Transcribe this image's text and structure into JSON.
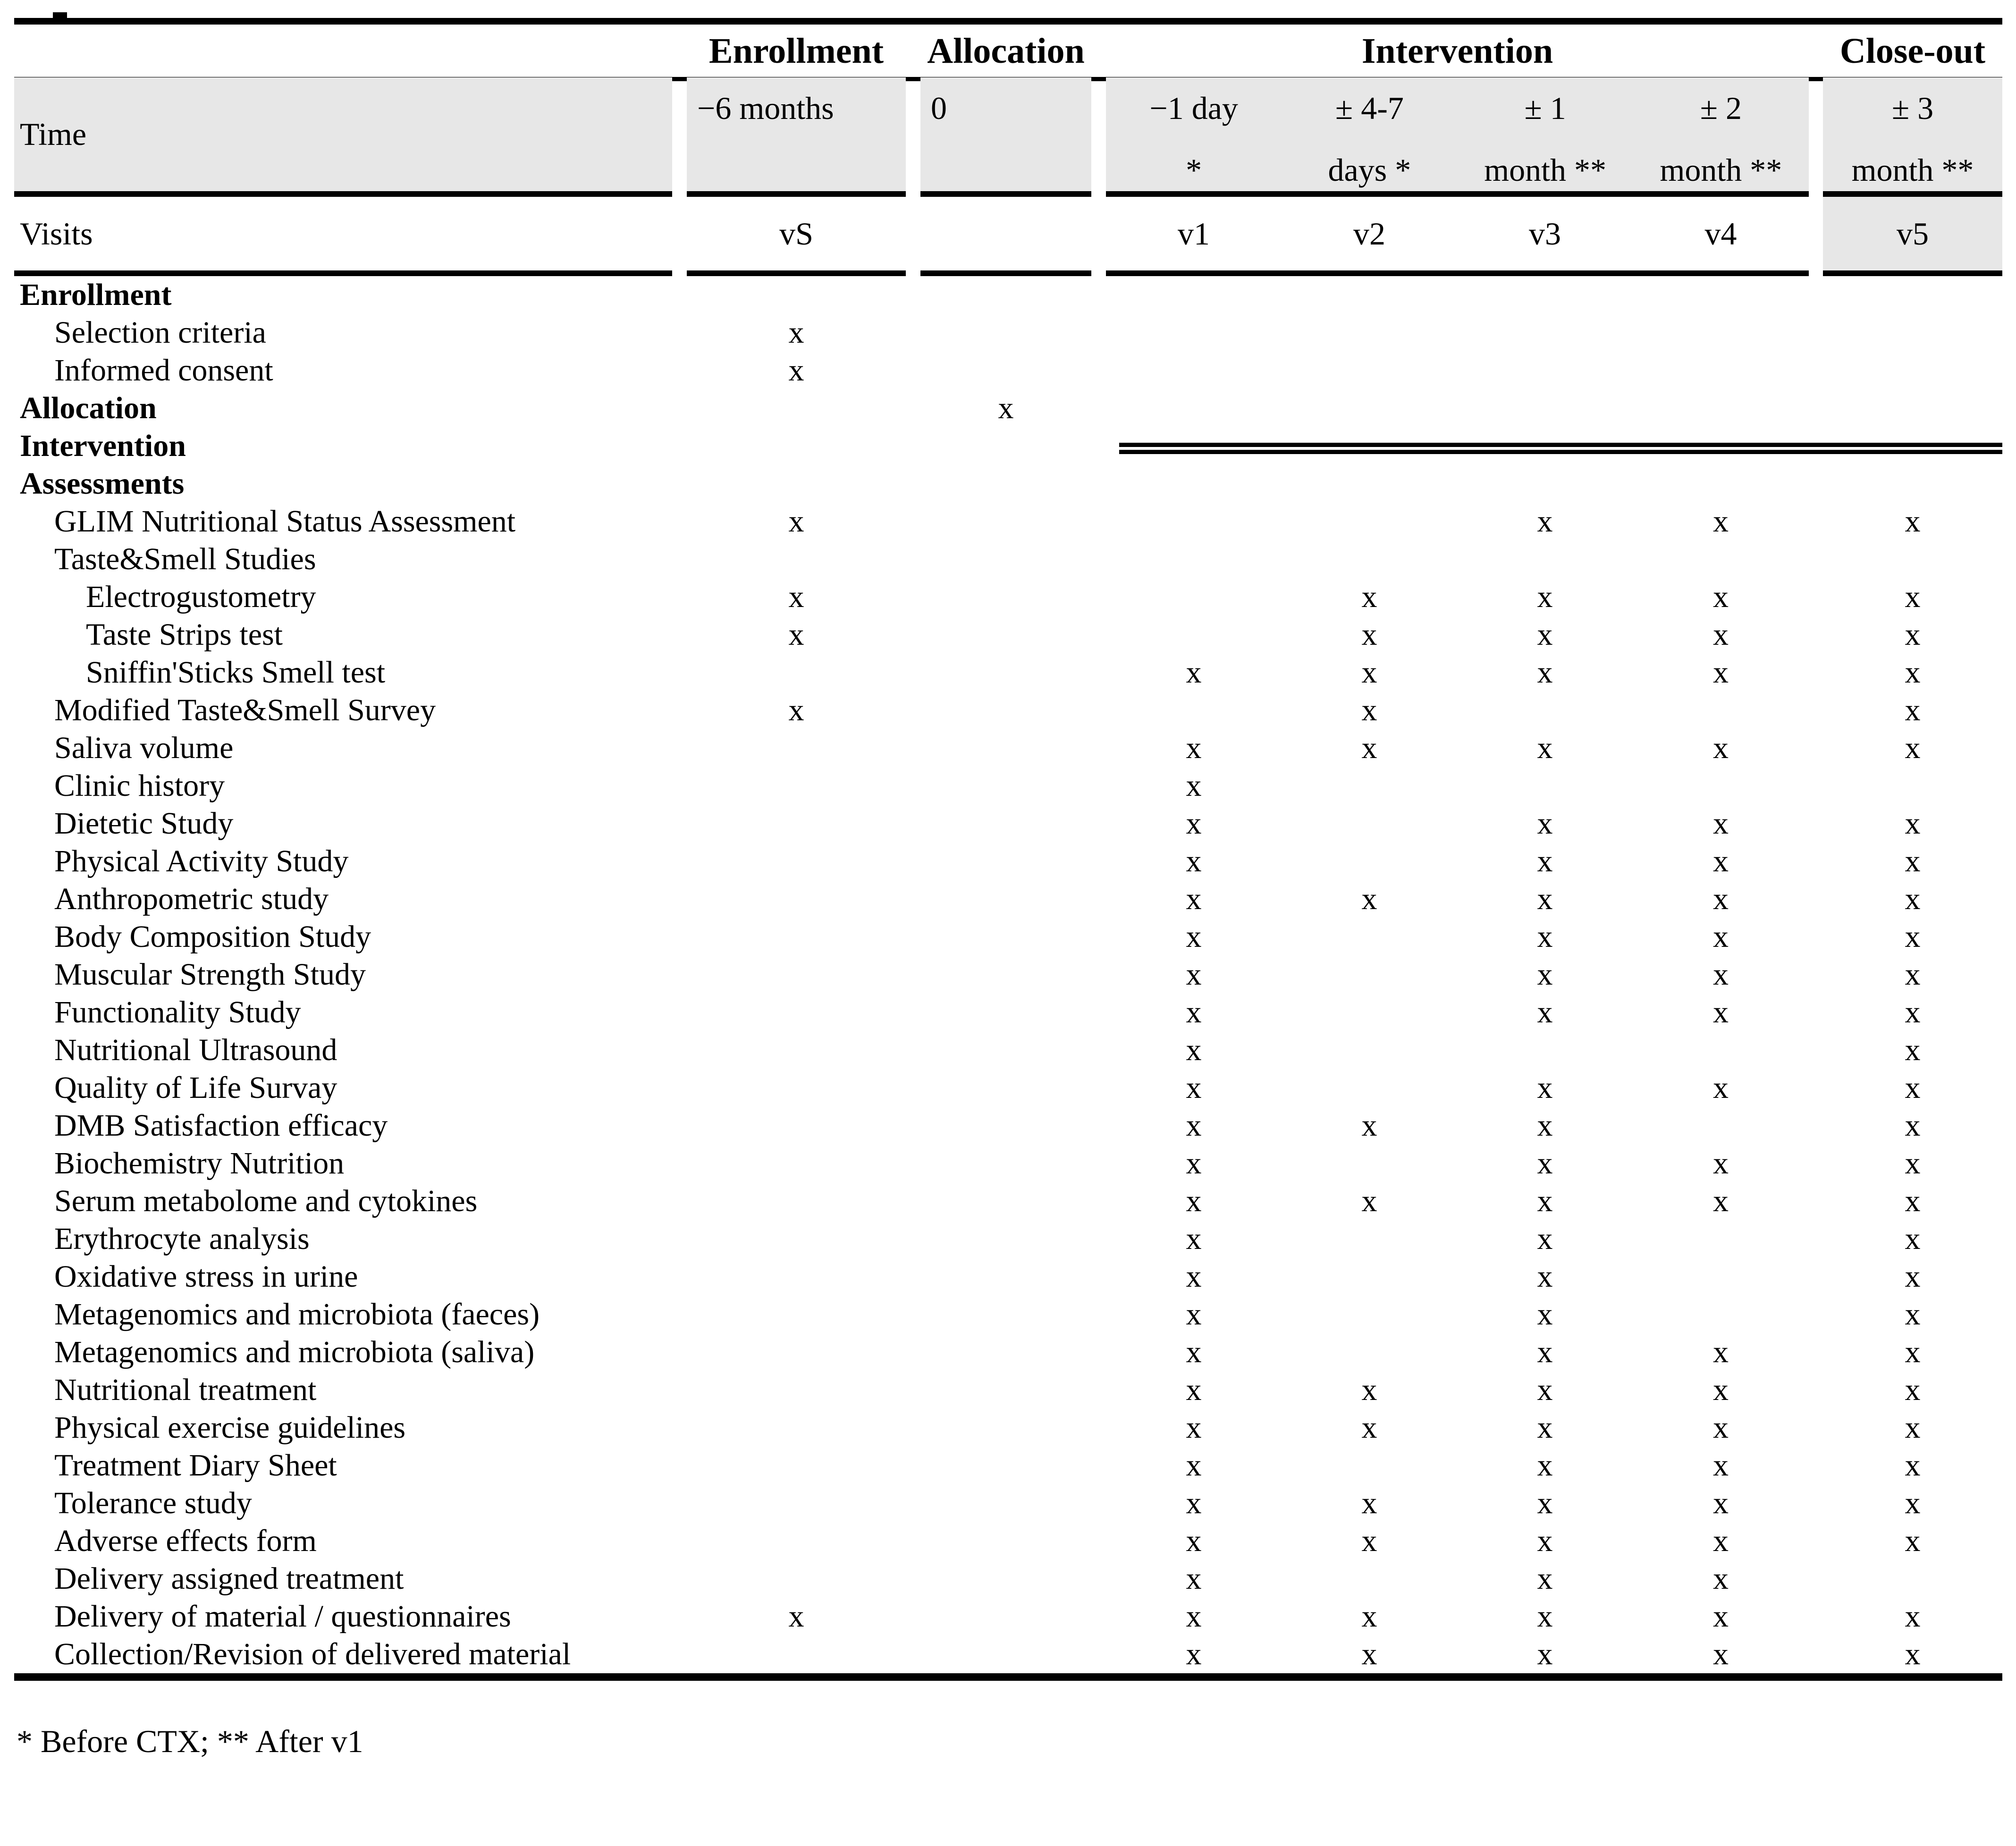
{
  "colors": {
    "shade_fill": "#e7e7e7",
    "rule_color": "#000000",
    "text_color": "#000000"
  },
  "table": {
    "mark_char": "x",
    "group_headers": {
      "enrollment": "Enrollment",
      "allocation": "Allocation",
      "intervention": "Intervention",
      "closeout": "Close-out"
    },
    "time_row": {
      "label": "Time",
      "enrollment": "−6 months",
      "allocation": "0",
      "intervention_cols": [
        {
          "l1": "−1 day",
          "l2": "*"
        },
        {
          "l1": "± 4-7",
          "l2": "days *"
        },
        {
          "l1": "± 1",
          "l2": "month **"
        },
        {
          "l1": "± 2",
          "l2": "month **"
        }
      ],
      "closeout": {
        "l1": "± 3",
        "l2": "month **"
      }
    },
    "visits_row": {
      "label": "Visits",
      "cells": [
        "vS",
        "",
        "v1",
        "v2",
        "v3",
        "v4",
        "v5"
      ]
    },
    "rows": [
      {
        "label": "Enrollment",
        "level": 0,
        "marks": [
          "",
          "",
          "",
          "",
          "",
          "",
          ""
        ]
      },
      {
        "label": "Selection criteria",
        "level": 1,
        "marks": [
          "x",
          "",
          "",
          "",
          "",
          "",
          ""
        ]
      },
      {
        "label": "Informed consent",
        "level": 1,
        "marks": [
          "x",
          "",
          "",
          "",
          "",
          "",
          ""
        ]
      },
      {
        "label": "Allocation",
        "level": 0,
        "marks": [
          "",
          "x",
          "",
          "",
          "",
          "",
          ""
        ]
      },
      {
        "label": "Intervention",
        "level": 0,
        "marks": [
          "",
          "",
          "",
          "",
          "",
          "",
          ""
        ]
      },
      {
        "label": "Assessments",
        "level": 0,
        "marks": [
          "",
          "",
          "",
          "",
          "",
          "",
          ""
        ]
      },
      {
        "label": "GLIM Nutritional Status Assessment",
        "level": 1,
        "marks": [
          "x",
          "",
          "",
          "",
          "x",
          "x",
          "x"
        ]
      },
      {
        "label": "Taste&Smell Studies",
        "level": 1,
        "marks": [
          "",
          "",
          "",
          "",
          "",
          "",
          ""
        ]
      },
      {
        "label": "Electrogustometry",
        "level": 2,
        "marks": [
          "x",
          "",
          "",
          "x",
          "x",
          "x",
          "x"
        ]
      },
      {
        "label": "Taste Strips test",
        "level": 2,
        "marks": [
          "x",
          "",
          "",
          "x",
          "x",
          "x",
          "x"
        ]
      },
      {
        "label": "Sniffin'Sticks Smell test",
        "level": 2,
        "marks": [
          "",
          "",
          "x",
          "x",
          "x",
          "x",
          "x"
        ]
      },
      {
        "label": "Modified Taste&Smell Survey",
        "level": 1,
        "marks": [
          "x",
          "",
          "",
          "x",
          "",
          "",
          "x"
        ]
      },
      {
        "label": "Saliva volume",
        "level": 1,
        "marks": [
          "",
          "",
          "x",
          "x",
          "x",
          "x",
          "x"
        ]
      },
      {
        "label": "Clinic history",
        "level": 1,
        "marks": [
          "",
          "",
          "x",
          "",
          "",
          "",
          ""
        ]
      },
      {
        "label": "Dietetic Study",
        "level": 1,
        "marks": [
          "",
          "",
          "x",
          "",
          "x",
          "x",
          "x"
        ]
      },
      {
        "label": "Physical Activity Study",
        "level": 1,
        "marks": [
          "",
          "",
          "x",
          "",
          "x",
          "x",
          "x"
        ]
      },
      {
        "label": "Anthropometric study",
        "level": 1,
        "marks": [
          "",
          "",
          "x",
          "x",
          "x",
          "x",
          "x"
        ]
      },
      {
        "label": "Body Composition Study",
        "level": 1,
        "marks": [
          "",
          "",
          "x",
          "",
          "x",
          "x",
          "x"
        ]
      },
      {
        "label": "Muscular Strength Study",
        "level": 1,
        "marks": [
          "",
          "",
          "x",
          "",
          "x",
          "x",
          "x"
        ]
      },
      {
        "label": "Functionality Study",
        "level": 1,
        "marks": [
          "",
          "",
          "x",
          "",
          "x",
          "x",
          "x"
        ]
      },
      {
        "label": "Nutritional Ultrasound",
        "level": 1,
        "marks": [
          "",
          "",
          "x",
          "",
          "",
          "",
          "x"
        ]
      },
      {
        "label": "Quality of Life Survay",
        "level": 1,
        "marks": [
          "",
          "",
          "x",
          "",
          "x",
          "x",
          "x"
        ]
      },
      {
        "label": "DMB Satisfaction efficacy",
        "level": 1,
        "marks": [
          "",
          "",
          "x",
          "x",
          "x",
          "",
          "x"
        ]
      },
      {
        "label": "Biochemistry Nutrition",
        "level": 1,
        "marks": [
          "",
          "",
          "x",
          "",
          "x",
          "x",
          "x"
        ]
      },
      {
        "label": "Serum metabolome and cytokines",
        "level": 1,
        "marks": [
          "",
          "",
          "x",
          "x",
          "x",
          "x",
          "x"
        ]
      },
      {
        "label": "Erythrocyte analysis",
        "level": 1,
        "marks": [
          "",
          "",
          "x",
          "",
          "x",
          "",
          "x"
        ]
      },
      {
        "label": "Oxidative stress in urine",
        "level": 1,
        "marks": [
          "",
          "",
          "x",
          "",
          "x",
          "",
          "x"
        ]
      },
      {
        "label": "Metagenomics and microbiota (faeces)",
        "level": 1,
        "marks": [
          "",
          "",
          "x",
          "",
          "x",
          "",
          "x"
        ]
      },
      {
        "label": "Metagenomics and microbiota (saliva)",
        "level": 1,
        "marks": [
          "",
          "",
          "x",
          "",
          "x",
          "x",
          "x"
        ]
      },
      {
        "label": "Nutritional treatment",
        "level": 1,
        "marks": [
          "",
          "",
          "x",
          "x",
          "x",
          "x",
          "x"
        ]
      },
      {
        "label": "Physical exercise guidelines",
        "level": 1,
        "marks": [
          "",
          "",
          "x",
          "x",
          "x",
          "x",
          "x"
        ]
      },
      {
        "label": "Treatment Diary Sheet",
        "level": 1,
        "marks": [
          "",
          "",
          "x",
          "",
          "x",
          "x",
          "x"
        ]
      },
      {
        "label": "Tolerance study",
        "level": 1,
        "marks": [
          "",
          "",
          "x",
          "x",
          "x",
          "x",
          "x"
        ]
      },
      {
        "label": "Adverse effects form",
        "level": 1,
        "marks": [
          "",
          "",
          "x",
          "x",
          "x",
          "x",
          "x"
        ]
      },
      {
        "label": "Delivery assigned treatment",
        "level": 1,
        "marks": [
          "",
          "",
          "x",
          "",
          "x",
          "x",
          ""
        ]
      },
      {
        "label": "Delivery of material / questionnaires",
        "level": 1,
        "marks": [
          "x",
          "",
          "x",
          "x",
          "x",
          "x",
          "x"
        ]
      },
      {
        "label": "Collection/Revision of delivered material",
        "level": 1,
        "marks": [
          "",
          "",
          "x",
          "x",
          "x",
          "x",
          "x"
        ]
      }
    ],
    "footnote": "* Before CTX; ** After v1"
  }
}
